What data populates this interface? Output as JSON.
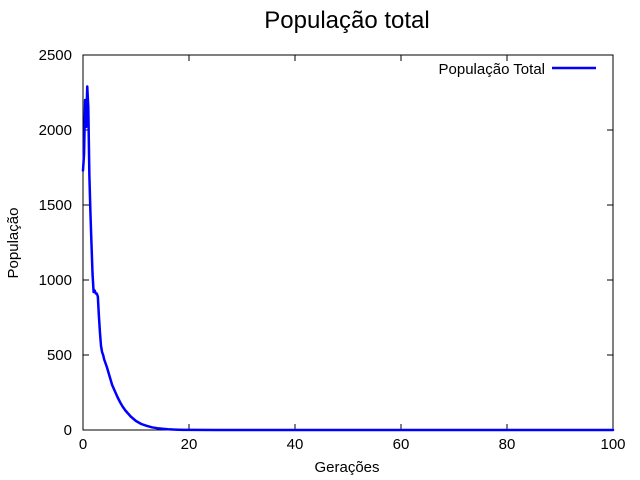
{
  "chart_data": {
    "type": "line",
    "title": "População total",
    "xlabel": "Gerações",
    "ylabel": "População",
    "xlim": [
      0,
      100
    ],
    "ylim": [
      0,
      2500
    ],
    "x_ticks": [
      "0",
      "20",
      "40",
      "60",
      "80",
      "100"
    ],
    "y_ticks": [
      "0",
      "500",
      "1000",
      "1500",
      "2000",
      "2500"
    ],
    "grid": false,
    "legend_position": "top-right",
    "series": [
      {
        "name": "População Total",
        "color": "#0000ff",
        "x": [
          0,
          0.2,
          0.4,
          0.6,
          0.8,
          1,
          1.2,
          1.4,
          1.6,
          1.8,
          2,
          2.2,
          2.4,
          2.6,
          2.8,
          3,
          3.2,
          3.4,
          3.6,
          3.8,
          4,
          4.5,
          5,
          5.5,
          6,
          6.5,
          7,
          7.5,
          8,
          8.5,
          9,
          9.5,
          10,
          11,
          12,
          13,
          14,
          15,
          16,
          17,
          18,
          19,
          20,
          25,
          30,
          40,
          50,
          60,
          70,
          80,
          90,
          100
        ],
        "y": [
          1730,
          1840,
          2200,
          2020,
          2290,
          2150,
          1700,
          1450,
          1240,
          1040,
          920,
          930,
          910,
          910,
          890,
          760,
          650,
          560,
          520,
          500,
          470,
          420,
          360,
          300,
          260,
          220,
          185,
          155,
          130,
          110,
          90,
          75,
          60,
          40,
          28,
          18,
          12,
          8,
          5,
          3,
          2,
          1,
          1,
          0,
          0,
          0,
          0,
          0,
          0,
          0,
          0,
          0
        ]
      }
    ]
  }
}
